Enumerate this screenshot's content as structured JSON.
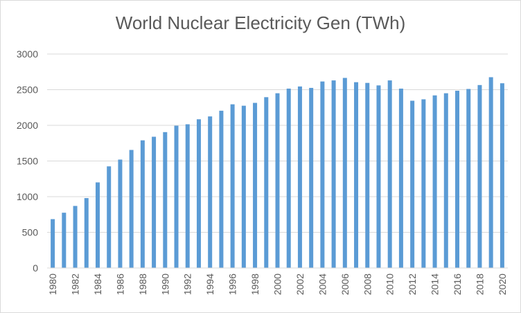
{
  "chart_data": {
    "type": "bar",
    "title": "World Nuclear Electricity Gen (TWh)",
    "xlabel": "",
    "ylabel": "",
    "ylim": [
      0,
      3000
    ],
    "y_ticks": [
      0,
      500,
      1000,
      1500,
      2000,
      2500,
      3000
    ],
    "grid": true,
    "bar_color": "#5b9bd5",
    "categories": [
      "1980",
      "1981",
      "1982",
      "1983",
      "1984",
      "1985",
      "1986",
      "1987",
      "1988",
      "1989",
      "1990",
      "1991",
      "1992",
      "1993",
      "1994",
      "1995",
      "1996",
      "1997",
      "1998",
      "1999",
      "2000",
      "2001",
      "2002",
      "2003",
      "2004",
      "2005",
      "2006",
      "2007",
      "2008",
      "2009",
      "2010",
      "2011",
      "2012",
      "2013",
      "2014",
      "2015",
      "2016",
      "2017",
      "2018",
      "2019",
      "2020"
    ],
    "x_tick_labels": [
      "1980",
      "1982",
      "1984",
      "1986",
      "1988",
      "1990",
      "1992",
      "1994",
      "1996",
      "1998",
      "2000",
      "2002",
      "2004",
      "2006",
      "2008",
      "2010",
      "2012",
      "2014",
      "2016",
      "2018",
      "2020"
    ],
    "values": [
      685,
      775,
      870,
      980,
      1200,
      1425,
      1520,
      1655,
      1790,
      1840,
      1905,
      1995,
      2015,
      2085,
      2125,
      2205,
      2295,
      2275,
      2315,
      2395,
      2450,
      2515,
      2545,
      2525,
      2615,
      2630,
      2665,
      2605,
      2595,
      2560,
      2630,
      2515,
      2345,
      2365,
      2420,
      2450,
      2485,
      2510,
      2565,
      2675,
      2590
    ]
  }
}
